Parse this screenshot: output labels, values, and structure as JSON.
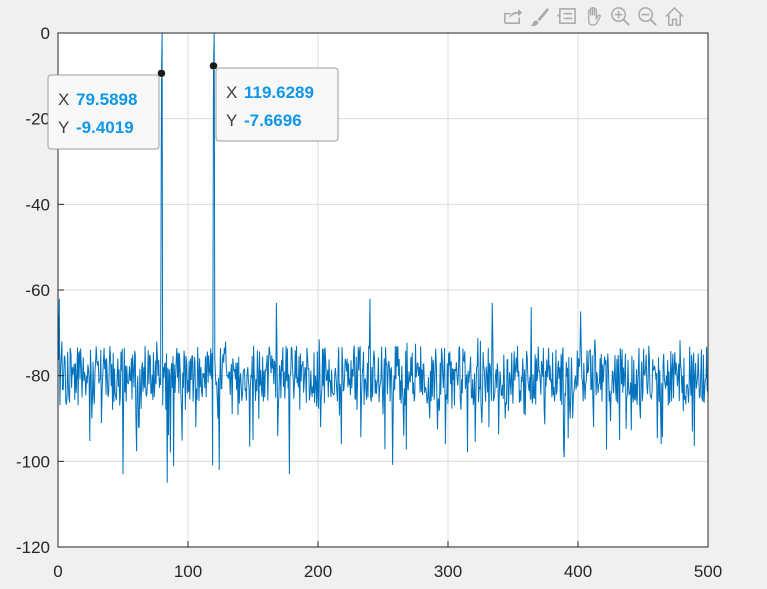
{
  "toolbar": {
    "icons": [
      "export-icon",
      "brush-icon",
      "datatip-icon",
      "pan-icon",
      "zoom-in-icon",
      "zoom-out-icon",
      "home-icon"
    ]
  },
  "colors": {
    "line": "#0072bd",
    "grid": "#dcdcdc",
    "axes_bg": "#ffffff",
    "figure_bg": "#f0f0f0",
    "datatip_value": "#0e97e8"
  },
  "datatips": [
    {
      "x_label": "X",
      "x_value": "79.5898",
      "y_label": "Y",
      "y_value": "-9.4019"
    },
    {
      "x_label": "X",
      "x_value": "119.6289",
      "y_label": "Y",
      "y_value": "-7.6696"
    }
  ],
  "chart_data": {
    "type": "line",
    "title": "",
    "xlabel": "",
    "ylabel": "",
    "xlim": [
      0,
      500
    ],
    "ylim": [
      -120,
      0
    ],
    "grid": true,
    "x_ticks": [
      0,
      100,
      200,
      300,
      400,
      500
    ],
    "y_ticks": [
      0,
      -20,
      -40,
      -60,
      -80,
      -100,
      -120
    ],
    "x_tick_labels": [
      "0",
      "100",
      "200",
      "300",
      "400",
      "500"
    ],
    "y_tick_labels": [
      "0",
      "-20",
      "-40",
      "-60",
      "-80",
      "-100",
      "-120"
    ],
    "series": [
      {
        "noise_floor_db": -80,
        "noise_min_db": -105,
        "noise_max_db": -62,
        "x_step": 0.488,
        "peaks": [
          {
            "x": 79.5898,
            "y": -9.4019
          },
          {
            "x": 80.0781,
            "y": 0
          },
          {
            "x": 119.6289,
            "y": -7.6696
          },
          {
            "x": 120.1172,
            "y": 0
          }
        ],
        "points": [
          [
            0,
            -65
          ],
          [
            1,
            -62
          ],
          [
            3,
            -72
          ],
          [
            6,
            -86
          ],
          [
            10,
            -75
          ],
          [
            14,
            -84
          ],
          [
            18,
            -78
          ],
          [
            22,
            -80
          ],
          [
            26,
            -90
          ],
          [
            30,
            -77
          ],
          [
            34,
            -83
          ],
          [
            38,
            -81
          ],
          [
            42,
            -88
          ],
          [
            46,
            -76
          ],
          [
            50,
            -103
          ],
          [
            54,
            -82
          ],
          [
            58,
            -79
          ],
          [
            62,
            -92
          ],
          [
            66,
            -78
          ],
          [
            70,
            -82
          ],
          [
            74,
            -85
          ],
          [
            77,
            -80
          ],
          [
            79.5898,
            -9.4019
          ],
          [
            80.0781,
            0
          ],
          [
            81,
            -78
          ],
          [
            83,
            -88
          ],
          [
            84,
            -105
          ],
          [
            86,
            -80
          ],
          [
            90,
            -84
          ],
          [
            94,
            -79
          ],
          [
            98,
            -88
          ],
          [
            102,
            -76
          ],
          [
            106,
            -92
          ],
          [
            110,
            -78
          ],
          [
            114,
            -85
          ],
          [
            117,
            -80
          ],
          [
            119.6289,
            -7.6696
          ],
          [
            120.1172,
            0
          ],
          [
            121,
            -79
          ],
          [
            123,
            -90
          ],
          [
            124,
            -102
          ],
          [
            126,
            -83
          ],
          [
            130,
            -80
          ],
          [
            134,
            -89
          ],
          [
            138,
            -77
          ],
          [
            142,
            -84
          ],
          [
            146,
            -78
          ],
          [
            150,
            -95
          ],
          [
            154,
            -80
          ],
          [
            158,
            -86
          ],
          [
            162,
            -76
          ],
          [
            166,
            -82
          ],
          [
            168,
            -63
          ],
          [
            170,
            -84
          ],
          [
            174,
            -79
          ],
          [
            178,
            -103
          ],
          [
            182,
            -81
          ],
          [
            186,
            -88
          ],
          [
            190,
            -78
          ],
          [
            194,
            -84
          ],
          [
            198,
            -80
          ],
          [
            202,
            -92
          ],
          [
            206,
            -77
          ],
          [
            210,
            -85
          ],
          [
            214,
            -81
          ],
          [
            218,
            -96
          ],
          [
            222,
            -79
          ],
          [
            226,
            -83
          ],
          [
            230,
            -88
          ],
          [
            234,
            -80
          ],
          [
            238,
            -77
          ],
          [
            240,
            -62
          ],
          [
            242,
            -85
          ],
          [
            246,
            -81
          ],
          [
            250,
            -89
          ],
          [
            254,
            -78
          ],
          [
            258,
            -84
          ],
          [
            262,
            -80
          ],
          [
            266,
            -94
          ],
          [
            270,
            -79
          ],
          [
            274,
            -86
          ],
          [
            278,
            -78
          ],
          [
            282,
            -84
          ],
          [
            286,
            -90
          ],
          [
            290,
            -80
          ],
          [
            294,
            -77
          ],
          [
            298,
            -96
          ],
          [
            302,
            -82
          ],
          [
            306,
            -79
          ],
          [
            310,
            -88
          ],
          [
            314,
            -81
          ],
          [
            318,
            -85
          ],
          [
            322,
            -78
          ],
          [
            326,
            -91
          ],
          [
            330,
            -80
          ],
          [
            334,
            -63
          ],
          [
            336,
            -84
          ],
          [
            340,
            -79
          ],
          [
            344,
            -90
          ],
          [
            348,
            -82
          ],
          [
            352,
            -78
          ],
          [
            356,
            -86
          ],
          [
            360,
            -80
          ],
          [
            364,
            -64
          ],
          [
            366,
            -85
          ],
          [
            370,
            -79
          ],
          [
            374,
            -88
          ],
          [
            378,
            -81
          ],
          [
            382,
            -86
          ],
          [
            386,
            -78
          ],
          [
            390,
            -84
          ],
          [
            394,
            -90
          ],
          [
            398,
            -80
          ],
          [
            402,
            -65
          ],
          [
            404,
            -86
          ],
          [
            408,
            -79
          ],
          [
            412,
            -92
          ],
          [
            416,
            -82
          ],
          [
            420,
            -78
          ],
          [
            424,
            -86
          ],
          [
            428,
            -80
          ],
          [
            432,
            -95
          ],
          [
            436,
            -79
          ],
          [
            440,
            -84
          ],
          [
            444,
            -82
          ],
          [
            448,
            -90
          ],
          [
            452,
            -78
          ],
          [
            456,
            -85
          ],
          [
            460,
            -81
          ],
          [
            464,
            -96
          ],
          [
            468,
            -80
          ],
          [
            472,
            -86
          ],
          [
            476,
            -79
          ],
          [
            480,
            -84
          ],
          [
            484,
            -82
          ],
          [
            488,
            -93
          ],
          [
            492,
            -80
          ],
          [
            496,
            -86
          ],
          [
            500,
            -84
          ]
        ]
      }
    ]
  }
}
